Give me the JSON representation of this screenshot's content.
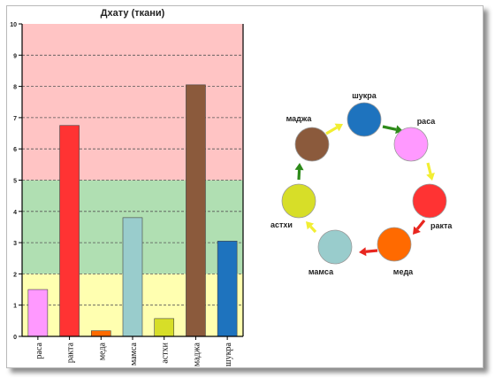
{
  "colors": {
    "zone_high": "#ffc4c4",
    "zone_mid": "#b0dfb2",
    "zone_low": "#ffffb0",
    "arrow_red": "#e8261f",
    "arrow_green": "#2d8a19",
    "arrow_yellow": "#f2ee32"
  },
  "chart_data": {
    "type": "bar",
    "title": "Дхату (ткани)",
    "xlabel": "",
    "ylabel": "",
    "ylim": [
      0,
      10
    ],
    "yticks": [
      "0",
      "1",
      "2",
      "3",
      "4",
      "5",
      "6",
      "7",
      "8",
      "9",
      "10"
    ],
    "grid": true,
    "bands": [
      {
        "from": 0,
        "to": 2,
        "color": "#ffffb0"
      },
      {
        "from": 2,
        "to": 5,
        "color": "#b0dfb2"
      },
      {
        "from": 5,
        "to": 10,
        "color": "#ffc4c4"
      }
    ],
    "categories": [
      "раса",
      "ракта",
      "меда",
      "мамса",
      "астхи",
      "маджа",
      "шукра"
    ],
    "values": [
      1.5,
      6.75,
      0.18,
      3.8,
      0.57,
      8.05,
      3.05
    ],
    "bar_colors": [
      "#ff99ff",
      "#ff3333",
      "#ff6a00",
      "#99cccc",
      "#d7de28",
      "#8b5a3c",
      "#1e73be"
    ]
  },
  "cycle": {
    "nodes": [
      {
        "label": "шукра",
        "color": "#1e73be"
      },
      {
        "label": "раса",
        "color": "#ff99ff"
      },
      {
        "label": "ракта",
        "color": "#ff3333"
      },
      {
        "label": "меда",
        "color": "#ff6a00"
      },
      {
        "label": "мамса",
        "color": "#99cccc"
      },
      {
        "label": "астхи",
        "color": "#d7de28"
      },
      {
        "label": "маджа",
        "color": "#8b5a3c"
      }
    ],
    "arrow_colors": [
      "green",
      "yellow",
      "red",
      "red",
      "yellow",
      "green",
      "yellow",
      "red"
    ]
  }
}
